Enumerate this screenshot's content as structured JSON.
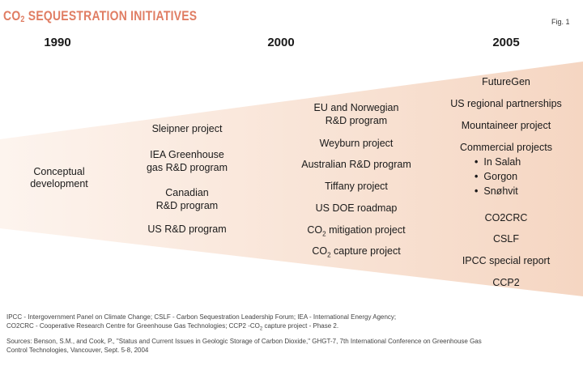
{
  "header": {
    "title_prefix": "CO",
    "title_sub": "2",
    "title_rest": " SEQUESTRATION INITIATIVES",
    "fig_label": "Fig. 1"
  },
  "years": [
    "1990",
    "2000",
    "2005"
  ],
  "col_1990": [
    "Conceptual",
    "development"
  ],
  "col_mid": [
    "Sleipner project",
    "IEA Greenhouse",
    "gas R&D program",
    "Canadian",
    "R&D program",
    "US R&D program"
  ],
  "col_2000": {
    "eu1": "EU and Norwegian",
    "eu2": "R&D program",
    "weyburn": "Weyburn project",
    "australian": "Australian R&D program",
    "tiffany": "Tiffany project",
    "doe": "US DOE roadmap",
    "co": "CO",
    "sub": "2",
    "mitigation": " mitigation project",
    "capture": " capture project"
  },
  "col_2005": {
    "futuregen": "FutureGen",
    "regional": "US regional partnerships",
    "mountaineer": "Mountaineer project",
    "commercial": "Commercial projects",
    "bullets": [
      "In Salah",
      "Gorgon",
      "Snøhvit"
    ],
    "co2crc": "CO2CRC",
    "cslf": "CSLF",
    "ipcc": "IPCC special report",
    "ccp2": "CCP2"
  },
  "footer": {
    "line1": "IPCC - Intergovernment Panel on Climate Change; CSLF - Carbon Sequestration Leadership Forum; IEA - International Energy Agency;",
    "line2a": "CO2CRC - Cooperative Research Centre for Greenhouse Gas Technologies; CCP2 -CO",
    "line2sub": "2",
    "line2b": " capture project - Phase 2.",
    "line3": "Sources: Benson, S.M., and Cook, P., \"Status and Current Issues in Geologic Storage of Carbon Dioxide,\" GHGT-7, 7th International  Conference on Greenhouse Gas",
    "line4": "Control Technologies, Vancouver, Sept. 5-8, 2004"
  },
  "colors": {
    "accent": "#e07d63",
    "wedge_light": "#fdf3ec",
    "wedge_dark": "#f6d7c3"
  }
}
